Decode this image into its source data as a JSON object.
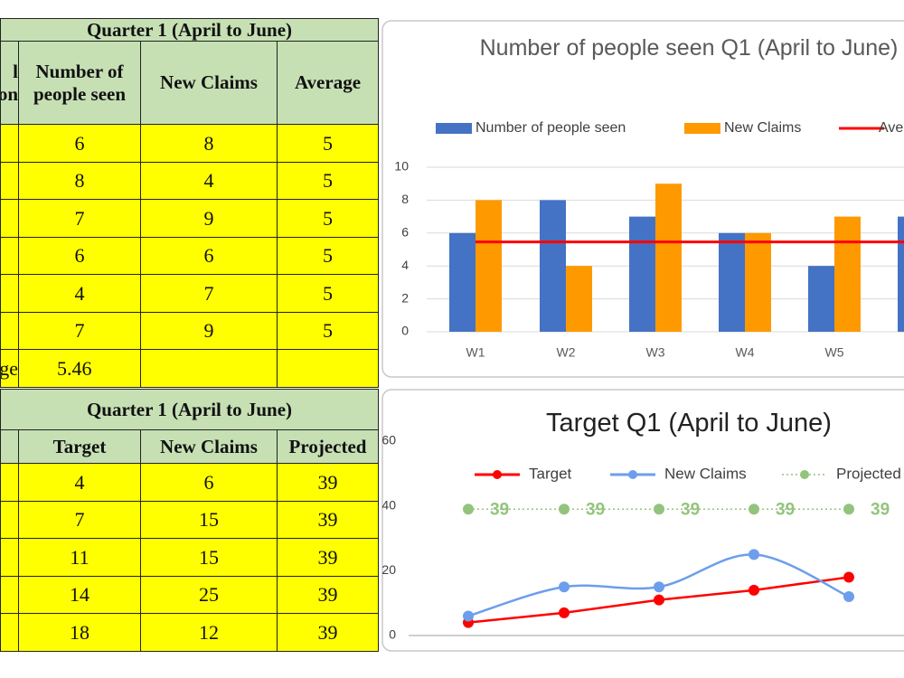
{
  "tables": [
    {
      "title": "Quarter 1 (April to June)",
      "header_fragment": [
        "l",
        "on"
      ],
      "columns": [
        [
          "Number of",
          "people seen"
        ],
        [
          "New Claims"
        ],
        [
          "Average"
        ]
      ],
      "rows": [
        [
          6,
          8,
          5
        ],
        [
          8,
          4,
          5
        ],
        [
          7,
          9,
          5
        ],
        [
          6,
          6,
          5
        ],
        [
          4,
          7,
          5
        ],
        [
          7,
          9,
          5
        ]
      ],
      "footer": {
        "label": "ge",
        "value": 5.46
      }
    },
    {
      "title": "Quarter 1 (April to June)",
      "columns": [
        [
          "Target"
        ],
        [
          "New Claims"
        ],
        [
          "Projected"
        ]
      ],
      "rows": [
        [
          4,
          6,
          39
        ],
        [
          7,
          15,
          39
        ],
        [
          11,
          15,
          39
        ],
        [
          14,
          25,
          39
        ],
        [
          18,
          12,
          39
        ]
      ]
    }
  ],
  "chart_data": [
    {
      "type": "bar",
      "title": "Number of people seen Q1 (April to June)",
      "categories": [
        "W1",
        "W2",
        "W3",
        "W4",
        "W5",
        null
      ],
      "series": [
        {
          "name": "Number of people seen",
          "color": "#4472c4",
          "values": [
            6,
            8,
            7,
            6,
            4,
            7
          ]
        },
        {
          "name": "New Claims",
          "color": "#ff9900",
          "values": [
            8,
            4,
            9,
            6,
            7,
            null
          ]
        },
        {
          "name": "Average",
          "type": "line",
          "color": "#ff0000",
          "values": [
            5.46,
            5.46,
            5.46,
            5.46,
            5.46,
            5.46
          ]
        }
      ],
      "ylim": [
        0,
        10
      ],
      "yticks": [
        0,
        2,
        4,
        6,
        8,
        10
      ],
      "grid": true
    },
    {
      "type": "line",
      "title": "Target Q1 (April to June)",
      "categories": [
        null,
        null,
        null,
        null,
        null
      ],
      "series": [
        {
          "name": "Target",
          "color": "#ff0000",
          "values": [
            4,
            7,
            11,
            14,
            18
          ]
        },
        {
          "name": "New Claims",
          "color": "#6d9eeb",
          "smooth": true,
          "values": [
            6,
            15,
            15,
            25,
            12
          ]
        },
        {
          "name": "Projected",
          "color": "#93c47d",
          "dotted": true,
          "data_labels": true,
          "values": [
            39,
            39,
            39,
            39,
            39
          ]
        }
      ],
      "ylim": [
        0,
        60
      ],
      "yticks": [
        0,
        20,
        40,
        60
      ],
      "grid": false
    }
  ]
}
